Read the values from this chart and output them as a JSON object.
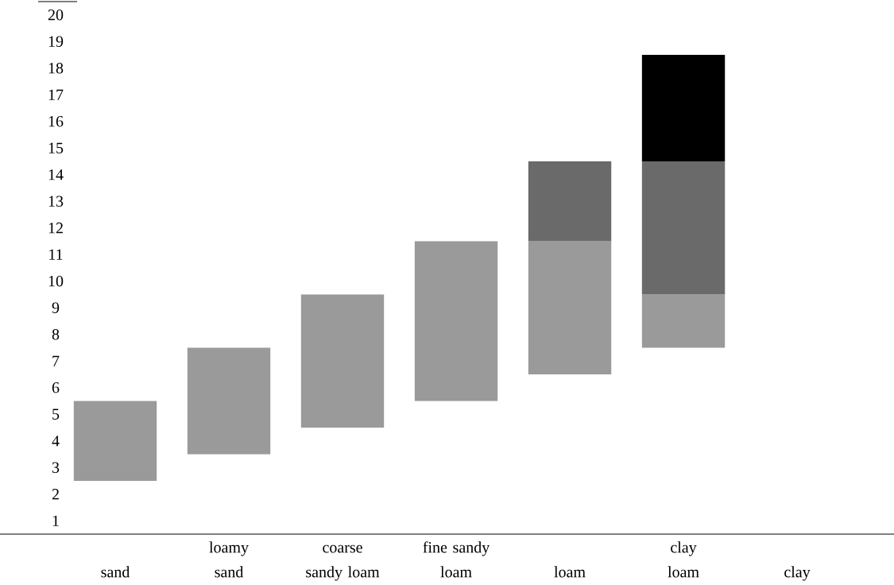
{
  "chart_data": {
    "type": "bar",
    "categories": [
      "sand",
      "loamy\nsand",
      "coarse\nsandy loam",
      "fine sandy\nloam",
      "loam",
      "clay\nloam",
      "clay"
    ],
    "series": [
      {
        "color": "#9a9a9a",
        "base": [
          2.5,
          3.5,
          4.5,
          5.5,
          6.5,
          7.5,
          null
        ],
        "values": [
          3,
          4,
          5,
          6,
          5,
          2,
          null
        ]
      },
      {
        "color": "#6a6a6a",
        "base": [
          null,
          null,
          null,
          null,
          11.5,
          9.5,
          null
        ],
        "values": [
          null,
          null,
          null,
          null,
          3,
          5,
          null
        ]
      },
      {
        "color": "#000000",
        "base": [
          null,
          null,
          null,
          null,
          null,
          14.5,
          null
        ],
        "values": [
          null,
          null,
          null,
          null,
          null,
          4,
          null
        ]
      }
    ],
    "ylim": [
      0.5,
      20
    ],
    "yticks": [
      1,
      2,
      3,
      4,
      5,
      6,
      7,
      8,
      9,
      10,
      11,
      12,
      13,
      14,
      15,
      16,
      17,
      18,
      19,
      20
    ],
    "grid": false
  }
}
